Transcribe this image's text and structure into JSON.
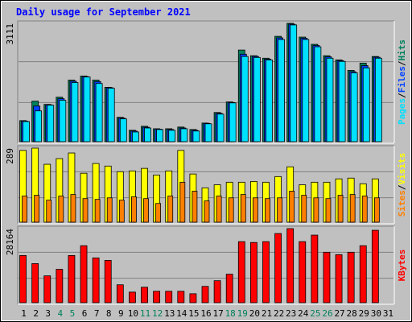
{
  "title": "Daily usage for September 2021",
  "legend_separator": "/",
  "chart_data": {
    "type": "bar",
    "categories": [
      "1",
      "2",
      "3",
      "4",
      "5",
      "6",
      "7",
      "8",
      "9",
      "10",
      "11",
      "12",
      "13",
      "14",
      "15",
      "16",
      "17",
      "18",
      "19",
      "20",
      "21",
      "22",
      "23",
      "24",
      "25",
      "26",
      "27",
      "28",
      "29",
      "30",
      "31"
    ],
    "category_colors": [
      "#000000",
      "#000000",
      "#000000",
      "#00805c",
      "#00805c",
      "#000000",
      "#000000",
      "#000000",
      "#000000",
      "#000000",
      "#00805c",
      "#00805c",
      "#000000",
      "#000000",
      "#000000",
      "#000000",
      "#000000",
      "#00805c",
      "#00805c",
      "#000000",
      "#000000",
      "#000000",
      "#000000",
      "#000000",
      "#00805c",
      "#00805c",
      "#000000",
      "#000000",
      "#000000",
      "#000000",
      "#000000"
    ],
    "panels": [
      {
        "ylim": [
          0,
          3111
        ],
        "yticks": [
          3111
        ],
        "series": [
          {
            "name": "Pages",
            "color": "#00e0ff",
            "values": [
              530,
              810,
              960,
              1090,
              1555,
              1700,
              1530,
              1405,
              600,
              255,
              360,
              320,
              300,
              340,
              280,
              470,
              725,
              1020,
              2240,
              2215,
              2150,
              2685,
              3070,
              2685,
              2495,
              2195,
              2110,
              1810,
              1940,
              2195,
              null
            ]
          },
          {
            "name": "Files",
            "color": "#0040ff",
            "values": [
              540,
              937,
              970,
              1130,
              1590,
              1710,
              1580,
              1420,
              620,
              280,
              380,
              330,
              320,
              360,
              300,
              480,
              745,
              1030,
              2300,
              2240,
              2170,
              2730,
              3090,
              2720,
              2530,
              2230,
              2130,
              1840,
              2000,
              2220,
              null
            ]
          },
          {
            "name": "Hits",
            "color": "#00805c",
            "values": [
              554,
              1065,
              980,
              1170,
              1620,
              1725,
              1620,
              1430,
              640,
              300,
              405,
              340,
              340,
              385,
              320,
              490,
              767,
              1045,
              2410,
              2260,
              2195,
              2770,
              3111,
              2750,
              2560,
              2260,
              2150,
              1875,
              2065,
              2240,
              null
            ]
          }
        ]
      },
      {
        "ylim": [
          0,
          289
        ],
        "yticks": [
          289
        ],
        "series": [
          {
            "name": "Sites",
            "color": "#ff8000",
            "values": [
              102,
              105,
              86,
              102,
              108,
              92,
              89,
              95,
              86,
              99,
              92,
              73,
              102,
              156,
              121,
              83,
              102,
              95,
              108,
              95,
              92,
              95,
              121,
              105,
              95,
              92,
              105,
              108,
              102,
              95,
              null
            ]
          },
          {
            "name": "Visits",
            "color": "#ffff00",
            "values": [
              280,
              289,
              226,
              248,
              270,
              191,
              229,
              219,
              197,
              200,
              210,
              184,
              200,
              280,
              188,
              134,
              146,
              156,
              156,
              159,
              156,
              178,
              216,
              146,
              156,
              156,
              169,
              172,
              150,
              169,
              null
            ]
          }
        ]
      },
      {
        "ylim": [
          0,
          28164
        ],
        "yticks": [
          28164
        ],
        "series": [
          {
            "name": "KBytes",
            "color": "#ff0000",
            "values": [
              17950,
              14860,
              10210,
              12690,
              17950,
              21665,
              17020,
              16090,
              6810,
              4020,
              5880,
              4330,
              4330,
              4330,
              3400,
              6190,
              8360,
              10830,
              23210,
              22900,
              23210,
              26300,
              28164,
              23210,
              25700,
              19180,
              18260,
              19180,
              21665,
              27540,
              null
            ]
          }
        ]
      }
    ]
  }
}
